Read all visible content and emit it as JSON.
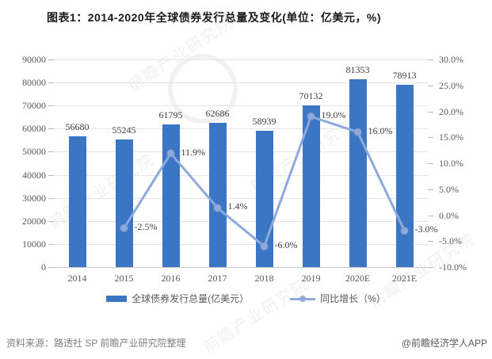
{
  "title": "图表1：2014-2020年全球债券发行总量及变化(单位：亿美元，%)",
  "chart_data": {
    "type": "bar+line",
    "categories": [
      "2014",
      "2015",
      "2016",
      "2017",
      "2018",
      "2019",
      "2020E",
      "2021E"
    ],
    "series": [
      {
        "name": "全球债券发行总量(亿美元）",
        "type": "bar",
        "axis": "left",
        "color": "#3b76c4",
        "values": [
          56680,
          55245,
          61795,
          62686,
          58939,
          70132,
          81353,
          78913
        ],
        "labels": [
          "56680",
          "55245",
          "61795",
          "62686",
          "58939",
          "70132",
          "81353",
          "78913"
        ]
      },
      {
        "name": "同比增长（%）",
        "type": "line",
        "axis": "right",
        "color": "#8ea9db",
        "values": [
          null,
          -2.5,
          11.9,
          1.4,
          -6.0,
          19.0,
          16.0,
          -3.0
        ],
        "labels": [
          null,
          "-2.5%",
          "11.9%",
          "1.4%",
          "-6.0%",
          "19.0%",
          "16.0%",
          "-3.0%"
        ]
      }
    ],
    "left_axis": {
      "min": 0,
      "max": 90000,
      "step": 10000,
      "ticks": [
        "90000",
        "80000",
        "70000",
        "60000",
        "50000",
        "40000",
        "30000",
        "20000",
        "10000",
        "0"
      ]
    },
    "right_axis": {
      "min": -10,
      "max": 30,
      "step": 5,
      "ticks": [
        "30.0%",
        "25.0%",
        "20.0%",
        "15.0%",
        "10.0%",
        "5.0%",
        "0.0%",
        "-5.0%",
        "-10.0%"
      ]
    },
    "grid": true,
    "legend_position": "bottom"
  },
  "footer": {
    "source": "资料来源：路透社 SP 前瞻产业研究院整理",
    "brand": "@前瞻经济学人APP"
  },
  "watermark": {
    "text": "前瞻产业研究院"
  },
  "colors": {
    "bar": "#3b76c4",
    "line": "#8ea9db",
    "grid": "#e4e4e4",
    "axis": "#c9c9c9",
    "tick_text": "#595959",
    "label_text": "#404040"
  }
}
